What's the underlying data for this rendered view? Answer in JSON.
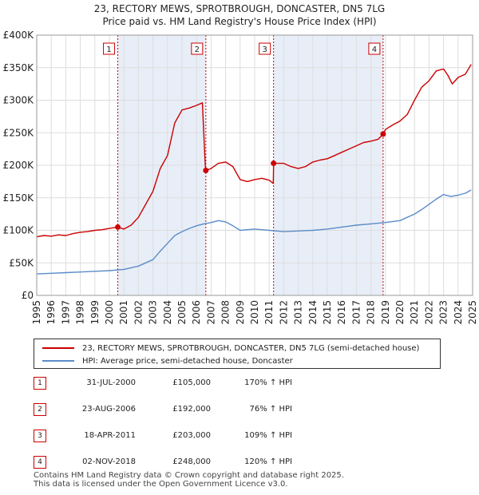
{
  "chart_data": {
    "type": "line",
    "title": "23, RECTORY MEWS, SPROTBROUGH, DONCASTER, DN5 7LG",
    "subtitle": "Price paid vs. HM Land Registry's House Price Index (HPI)",
    "xlim": [
      1995,
      2025
    ],
    "ylim": [
      0,
      400000
    ],
    "y_ticks": [
      0,
      50000,
      100000,
      150000,
      200000,
      250000,
      300000,
      350000,
      400000
    ],
    "y_tick_labels": [
      "£0",
      "£50K",
      "£100K",
      "£150K",
      "£200K",
      "£250K",
      "£300K",
      "£350K",
      "£400K"
    ],
    "x_ticks": [
      1995,
      1996,
      1997,
      1998,
      1999,
      2000,
      2001,
      2002,
      2003,
      2004,
      2005,
      2006,
      2007,
      2008,
      2009,
      2010,
      2011,
      2012,
      2013,
      2014,
      2015,
      2016,
      2017,
      2018,
      2019,
      2020,
      2021,
      2022,
      2023,
      2024,
      2025
    ],
    "x_tick_labels": [
      "1995",
      "1996",
      "1997",
      "1998",
      "1999",
      "2000",
      "2001",
      "2002",
      "2003",
      "2004",
      "2005",
      "2006",
      "2007",
      "2008",
      "2009",
      "2010",
      "2011",
      "2012",
      "2013",
      "2014",
      "2015",
      "2016",
      "2017",
      "2018",
      "2019",
      "2020",
      "2021",
      "2022",
      "2023",
      "2024",
      "2025"
    ],
    "shaded_periods": [
      [
        2000.58,
        2006.64
      ],
      [
        2011.3,
        2018.84
      ]
    ],
    "series": [
      {
        "name": "23, RECTORY MEWS, SPROTBROUGH, DONCASTER, DN5 7LG (semi-detached house)",
        "color": "#cc0000",
        "x": [
          1995.0,
          1995.5,
          1996.0,
          1996.5,
          1997.0,
          1997.5,
          1998.0,
          1998.5,
          1999.0,
          1999.5,
          2000.0,
          2000.58,
          2001.0,
          2001.5,
          2002.0,
          2002.5,
          2003.0,
          2003.5,
          2004.0,
          2004.5,
          2005.0,
          2005.5,
          2006.0,
          2006.4,
          2006.6,
          2006.64,
          2007.0,
          2007.5,
          2008.0,
          2008.5,
          2009.0,
          2009.5,
          2010.0,
          2010.5,
          2011.0,
          2011.28,
          2011.3,
          2012.0,
          2012.5,
          2013.0,
          2013.5,
          2014.0,
          2014.5,
          2015.0,
          2015.5,
          2016.0,
          2016.5,
          2017.0,
          2017.5,
          2018.0,
          2018.5,
          2018.84,
          2019.0,
          2019.5,
          2020.0,
          2020.5,
          2021.0,
          2021.5,
          2022.0,
          2022.5,
          2023.0,
          2023.3,
          2023.6,
          2024.0,
          2024.5,
          2024.9
        ],
        "values": [
          90000,
          92000,
          91000,
          93000,
          92000,
          95000,
          97000,
          98000,
          100000,
          101000,
          103000,
          105000,
          102000,
          108000,
          120000,
          140000,
          160000,
          195000,
          215000,
          265000,
          285000,
          288000,
          292000,
          296000,
          200000,
          192000,
          195000,
          203000,
          205000,
          198000,
          178000,
          175000,
          178000,
          180000,
          177000,
          172000,
          203000,
          203000,
          198000,
          195000,
          198000,
          205000,
          208000,
          210000,
          215000,
          220000,
          225000,
          230000,
          235000,
          237000,
          240000,
          248000,
          255000,
          262000,
          268000,
          278000,
          300000,
          320000,
          330000,
          345000,
          348000,
          338000,
          325000,
          335000,
          340000,
          355000
        ]
      },
      {
        "name": "HPI: Average price, semi-detached house, Doncaster",
        "color": "#5b8cc8",
        "x": [
          1995.0,
          1996.0,
          1997.0,
          1998.0,
          1999.0,
          2000.0,
          2001.0,
          2002.0,
          2003.0,
          2003.5,
          2004.0,
          2004.5,
          2005.0,
          2005.5,
          2006.0,
          2006.5,
          2007.0,
          2007.5,
          2008.0,
          2008.5,
          2009.0,
          2009.5,
          2010.0,
          2010.5,
          2011.0,
          2011.5,
          2012.0,
          2013.0,
          2014.0,
          2015.0,
          2016.0,
          2017.0,
          2018.0,
          2019.0,
          2020.0,
          2020.5,
          2021.0,
          2021.5,
          2022.0,
          2022.5,
          2023.0,
          2023.5,
          2024.0,
          2024.5,
          2024.9
        ],
        "values": [
          33000,
          34000,
          35000,
          36000,
          37000,
          38000,
          40000,
          45000,
          55000,
          68000,
          80000,
          92000,
          98000,
          103000,
          107000,
          110000,
          112000,
          115000,
          113000,
          107000,
          100000,
          101000,
          102000,
          101000,
          100000,
          99000,
          98000,
          99000,
          100000,
          102000,
          105000,
          108000,
          110000,
          112000,
          115000,
          120000,
          125000,
          132000,
          140000,
          148000,
          155000,
          152000,
          154000,
          157000,
          162000
        ]
      }
    ],
    "sales": [
      {
        "label": "1",
        "x": 2000.58,
        "price": 105000
      },
      {
        "label": "2",
        "x": 2006.64,
        "price": 192000
      },
      {
        "label": "3",
        "x": 2011.3,
        "price": 203000
      },
      {
        "label": "4",
        "x": 2018.84,
        "price": 248000
      }
    ]
  },
  "legend": {
    "red_label": "23, RECTORY MEWS, SPROTBROUGH, DONCASTER, DN5 7LG (semi-detached house)",
    "blue_label": "HPI: Average price, semi-detached house, Doncaster"
  },
  "table": [
    {
      "num": "1",
      "date": "31-JUL-2000",
      "price": "£105,000",
      "hpi": "170% ↑ HPI"
    },
    {
      "num": "2",
      "date": "23-AUG-2006",
      "price": "£192,000",
      "hpi": "76% ↑ HPI"
    },
    {
      "num": "3",
      "date": "18-APR-2011",
      "price": "£203,000",
      "hpi": "109% ↑ HPI"
    },
    {
      "num": "4",
      "date": "02-NOV-2018",
      "price": "£248,000",
      "hpi": "120% ↑ HPI"
    }
  ],
  "footer": {
    "line1": "Contains HM Land Registry data © Crown copyright and database right 2025.",
    "line2": "This data is licensed under the Open Government Licence v3.0."
  },
  "colors": {
    "red": "#cc0000",
    "blue": "#5b8cc8",
    "shade": "#e8eef8",
    "grid": "#dddddd"
  }
}
